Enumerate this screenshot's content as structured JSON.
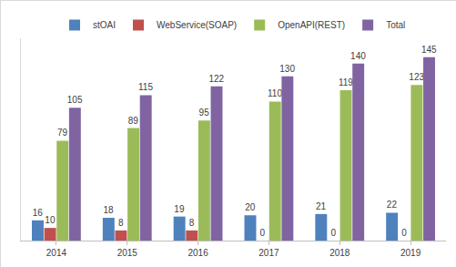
{
  "chart_data": {
    "type": "bar",
    "categories": [
      "2014",
      "2015",
      "2016",
      "2017",
      "2018",
      "2019"
    ],
    "series": [
      {
        "name": "stOAI",
        "color": "#4f81bd",
        "values": [
          16,
          18,
          19,
          20,
          21,
          22
        ]
      },
      {
        "name": "WebService(SOAP)",
        "color": "#c0504d",
        "values": [
          10,
          8,
          8,
          0,
          0,
          0
        ]
      },
      {
        "name": "OpenAPI(REST)",
        "color": "#9bbb59",
        "values": [
          79,
          89,
          95,
          110,
          119,
          123
        ]
      },
      {
        "name": "Total",
        "color": "#8064a2",
        "values": [
          105,
          115,
          122,
          130,
          140,
          145
        ]
      }
    ],
    "ylim": [
      0,
      160
    ],
    "grid": false,
    "legend": "top",
    "data_labels": true,
    "tick_labels": "x"
  }
}
